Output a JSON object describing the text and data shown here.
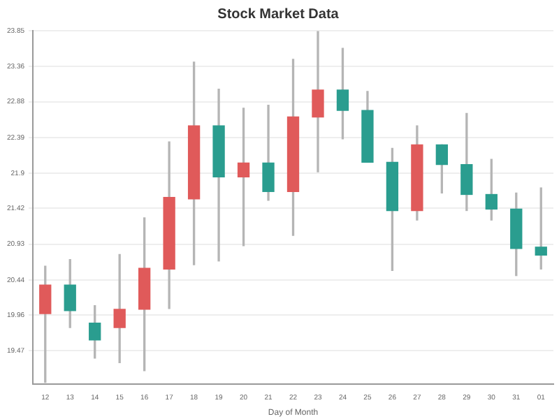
{
  "chart_data": {
    "type": "candlestick",
    "title": "Stock Market Data",
    "xlabel": "Day of Month",
    "categories": [
      "12",
      "13",
      "14",
      "15",
      "16",
      "17",
      "18",
      "19",
      "20",
      "21",
      "22",
      "23",
      "24",
      "25",
      "26",
      "27",
      "28",
      "29",
      "30",
      "31",
      "01"
    ],
    "ohlc": [
      [
        19.98,
        20.63,
        19.04,
        20.37
      ],
      [
        20.37,
        20.72,
        19.79,
        20.02
      ],
      [
        19.85,
        20.09,
        19.37,
        19.62
      ],
      [
        19.79,
        20.79,
        19.31,
        20.04
      ],
      [
        20.04,
        21.29,
        19.2,
        20.6
      ],
      [
        20.59,
        22.33,
        20.05,
        21.57
      ],
      [
        21.55,
        23.42,
        20.65,
        22.55
      ],
      [
        22.55,
        23.05,
        20.7,
        21.85
      ],
      [
        21.85,
        22.79,
        20.91,
        22.04
      ],
      [
        22.04,
        22.83,
        21.53,
        21.65
      ],
      [
        21.65,
        23.46,
        21.05,
        22.67
      ],
      [
        22.67,
        23.84,
        21.92,
        23.04
      ],
      [
        23.04,
        23.61,
        22.37,
        22.76
      ],
      [
        22.76,
        23.02,
        22.05,
        22.05
      ],
      [
        22.05,
        22.24,
        20.57,
        21.39
      ],
      [
        21.39,
        22.55,
        21.26,
        22.29
      ],
      [
        22.29,
        22.29,
        21.63,
        22.02
      ],
      [
        22.02,
        22.72,
        21.39,
        21.61
      ],
      [
        21.61,
        22.09,
        21.26,
        21.41
      ],
      [
        21.41,
        21.63,
        20.5,
        20.87
      ],
      [
        20.89,
        21.7,
        20.59,
        20.78
      ]
    ],
    "colors": [
      "#e05a5a",
      "#2a9d8f",
      "#2a9d8f",
      "#e05a5a",
      "#e05a5a",
      "#e05a5a",
      "#e05a5a",
      "#2a9d8f",
      "#e05a5a",
      "#2a9d8f",
      "#e05a5a",
      "#e05a5a",
      "#2a9d8f",
      "#2a9d8f",
      "#2a9d8f",
      "#e05a5a",
      "#2a9d8f",
      "#2a9d8f",
      "#2a9d8f",
      "#2a9d8f",
      "#2a9d8f"
    ],
    "ylim": [
      19.02,
      23.85
    ],
    "yticks": [
      19.47,
      19.96,
      20.44,
      20.93,
      21.42,
      21.9,
      22.39,
      22.88,
      23.36,
      23.85
    ],
    "grid": "y"
  }
}
